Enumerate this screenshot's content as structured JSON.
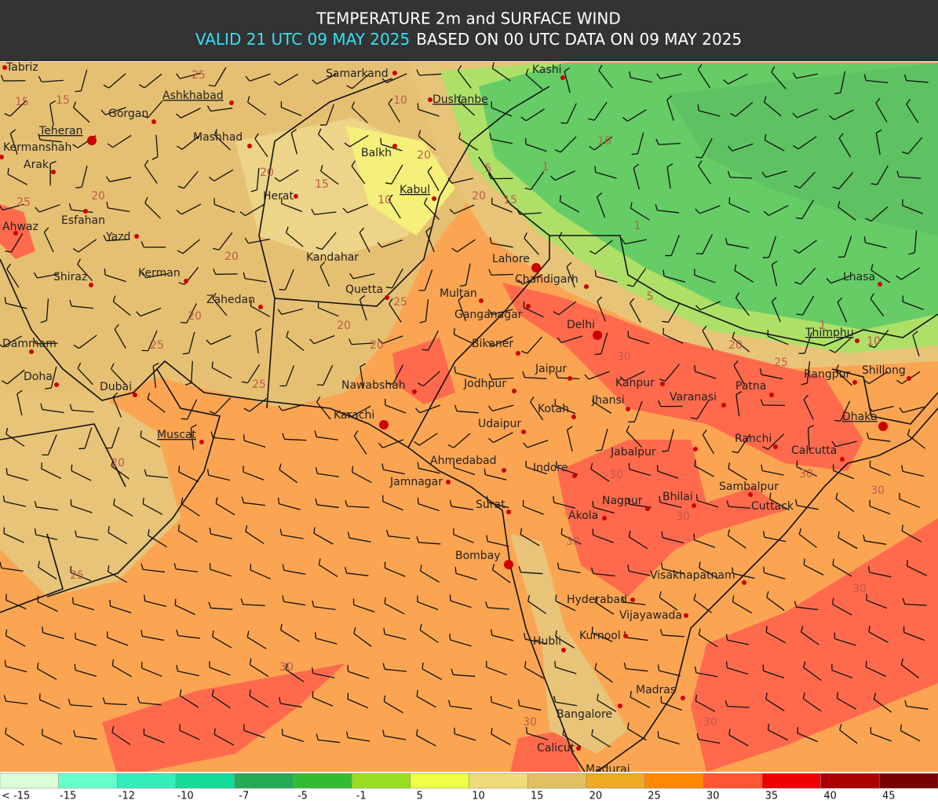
{
  "header": {
    "title": "TEMPERATURE 2m and SURFACE WIND",
    "valid": "VALID 21 UTC 09 MAY 2025",
    "based": "BASED ON 00 UTC DATA ON 09 MAY 2025"
  },
  "cities": [
    "Tabriz",
    "Samarkand",
    "Kashi",
    "Ashkhabad",
    "Dushanbe",
    "Gorgan",
    "Teheran",
    "Mashhad",
    "Kermanshah",
    "Balkh",
    "Arak",
    "Kabul",
    "Herat",
    "Esfahan",
    "Ahwaz",
    "Yazd",
    "Kandahar",
    "Lahore",
    "Kerman",
    "Shiraz",
    "Chandigarh",
    "Quetta",
    "Multan",
    "Zahedan",
    "Ganganagar",
    "Delhi",
    "Dammam",
    "Bikaner",
    "Jaipur",
    "Doha",
    "Rangpur",
    "Shillong",
    "Nawabshah",
    "Jodhpur",
    "Kanpur",
    "Patna",
    "Dubai",
    "Varanasi",
    "Jhansi",
    "Kotah",
    "Karachi",
    "Udaipur",
    "Dhaka",
    "Muscat",
    "Ranchi",
    "Jabalpur",
    "Calcutta",
    "Ahmedabad",
    "Indore",
    "Jamnagar",
    "Sambalpur",
    "Surat",
    "Nagpur",
    "Bhilai",
    "Cuttack",
    "Akola",
    "Bombay",
    "Visakhapatnam",
    "Hyderabad",
    "Vijayawada",
    "Kurnool",
    "Hubli",
    "Madras",
    "Bangalore",
    "Calicut",
    "Madurai",
    "Lhasa",
    "Thimphu"
  ],
  "contour_labels": [
    "25",
    "15",
    "15",
    "20",
    "20",
    "20",
    "25",
    "20",
    "25",
    "25",
    "20",
    "10",
    "15",
    "20",
    "15",
    "20",
    "10",
    "5",
    "1",
    "25",
    "20",
    "30",
    "30",
    "30",
    "30",
    "30",
    "30",
    "30",
    "25",
    "20",
    "10",
    "5",
    "1",
    "1",
    "10",
    "20",
    "25",
    "30",
    "30",
    "30"
  ],
  "legend": {
    "labels": [
      "< -15",
      "-15",
      "-12",
      "-10",
      "-7",
      "-5",
      "-1",
      "5",
      "10",
      "15",
      "20",
      "25",
      "30",
      "35",
      "40",
      "45"
    ],
    "colors": [
      "#d8ffd8",
      "#66ffcc",
      "#33eebb",
      "#11dd99",
      "#22aa55",
      "#33bb33",
      "#99dd22",
      "#eeff44",
      "#eedc7a",
      "#e3bf62",
      "#eeaa22",
      "#ff8800",
      "#ff5533",
      "#ee0000",
      "#aa0000",
      "#770000"
    ]
  }
}
